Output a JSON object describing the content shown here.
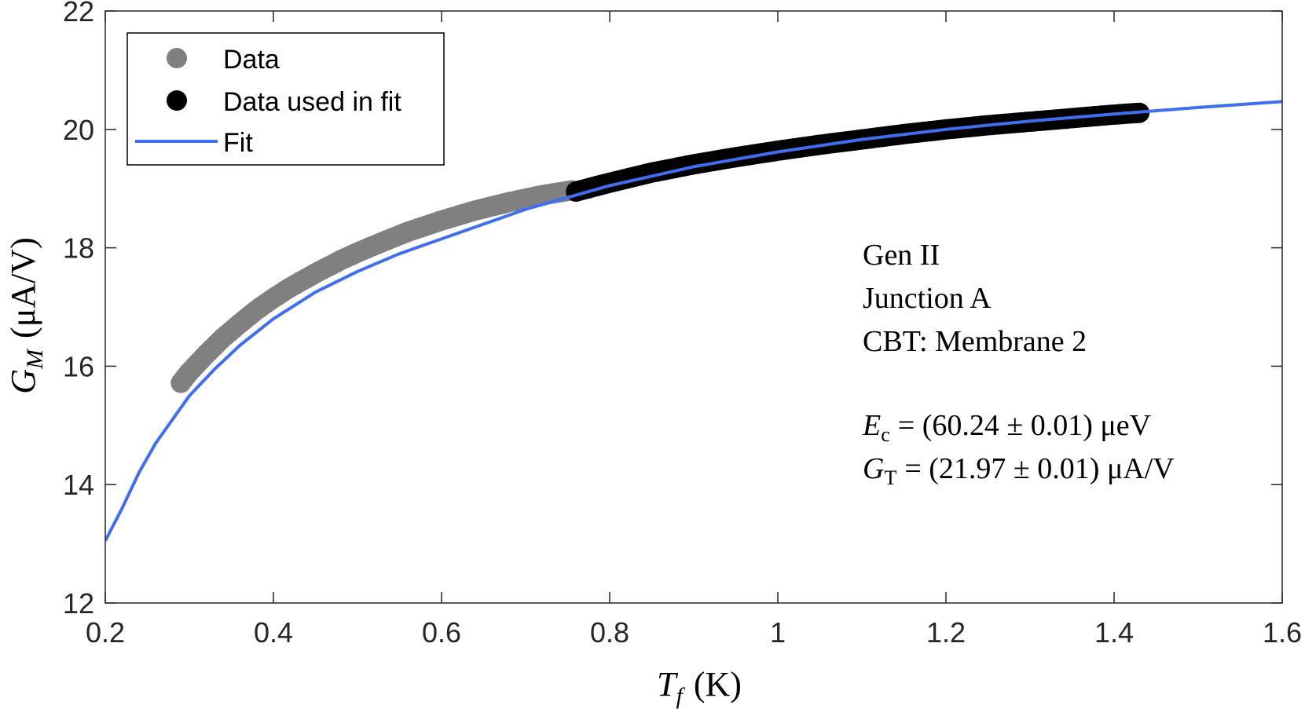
{
  "chart_data": {
    "type": "scatter",
    "title": "",
    "xlabel": {
      "symbol": "T",
      "subscript": "f",
      "unit": "(K)"
    },
    "ylabel": {
      "symbol": "G",
      "subscript": "M",
      "unit": "(μA/V)"
    },
    "xlim": [
      0.2,
      1.6
    ],
    "ylim": [
      12,
      22
    ],
    "xticks": [
      0.2,
      0.4,
      0.6,
      0.8,
      1.0,
      1.2,
      1.4,
      1.6
    ],
    "xtick_labels": [
      "0.2",
      "0.4",
      "0.6",
      "0.8",
      "1",
      "1.2",
      "1.4",
      "1.6"
    ],
    "yticks": [
      12,
      14,
      16,
      18,
      20,
      22
    ],
    "ytick_labels": [
      "12",
      "14",
      "16",
      "18",
      "20",
      "22"
    ],
    "grid": false,
    "legend_position": "top-left",
    "series": [
      {
        "name": "Data",
        "kind": "scatter",
        "color": "#808080",
        "x": [
          0.29,
          0.3,
          0.32,
          0.34,
          0.36,
          0.38,
          0.4,
          0.42,
          0.45,
          0.48,
          0.5,
          0.53,
          0.56,
          0.6,
          0.64,
          0.68,
          0.72,
          0.755
        ],
        "y": [
          15.72,
          15.9,
          16.2,
          16.48,
          16.72,
          16.95,
          17.15,
          17.33,
          17.57,
          17.79,
          17.92,
          18.1,
          18.27,
          18.46,
          18.63,
          18.77,
          18.89,
          18.97
        ]
      },
      {
        "name": "Data used in fit",
        "kind": "scatter",
        "color": "#000000",
        "x": [
          0.76,
          0.8,
          0.85,
          0.9,
          0.95,
          1.0,
          1.05,
          1.1,
          1.15,
          1.2,
          1.25,
          1.3,
          1.35,
          1.4,
          1.43
        ],
        "y": [
          18.95,
          19.1,
          19.27,
          19.41,
          19.53,
          19.64,
          19.74,
          19.83,
          19.92,
          20.0,
          20.07,
          20.13,
          20.19,
          20.25,
          20.28
        ]
      },
      {
        "name": "Fit",
        "kind": "line",
        "color": "#3F6FF0",
        "x": [
          0.2,
          0.22,
          0.24,
          0.26,
          0.28,
          0.3,
          0.33,
          0.36,
          0.4,
          0.45,
          0.5,
          0.55,
          0.6,
          0.7,
          0.8,
          0.9,
          1.0,
          1.1,
          1.2,
          1.3,
          1.4,
          1.5,
          1.6
        ],
        "y": [
          13.05,
          13.6,
          14.2,
          14.7,
          15.1,
          15.5,
          15.95,
          16.35,
          16.8,
          17.25,
          17.6,
          17.9,
          18.15,
          18.65,
          19.05,
          19.37,
          19.62,
          19.83,
          20.0,
          20.14,
          20.26,
          20.37,
          20.47
        ]
      }
    ],
    "annotations": {
      "lines": [
        "Gen II",
        "Junction A",
        "CBT: Membrane 2"
      ],
      "ec": {
        "symbol": "E",
        "subscript": "c",
        "value": "= (60.24 ± 0.01) μeV"
      },
      "gt": {
        "symbol": "G",
        "subscript": "T",
        "value": "= (21.97 ± 0.01) μA/V"
      }
    }
  }
}
